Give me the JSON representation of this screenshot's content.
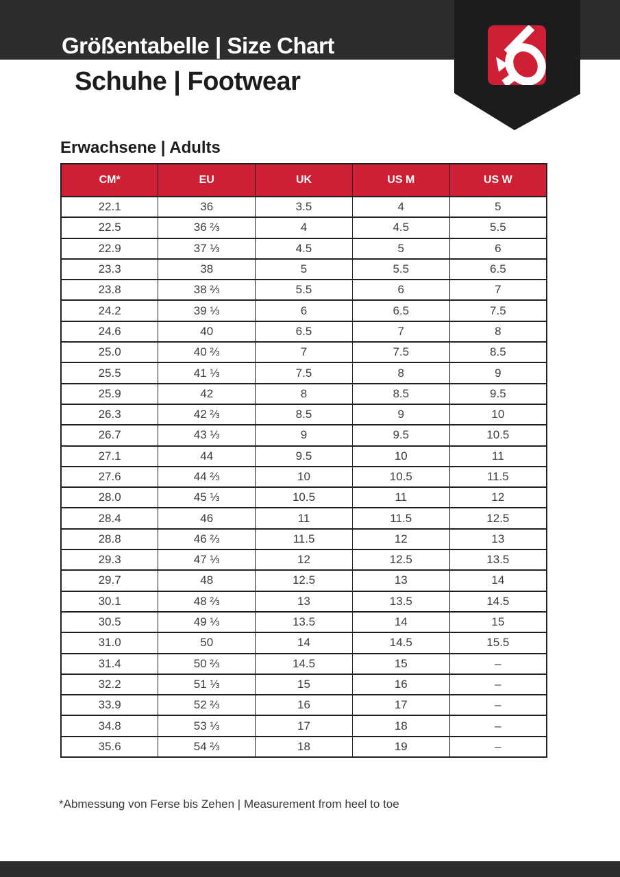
{
  "document": {
    "title": "Größentabelle | Size Chart",
    "subtitle": "Schuhe | Footwear",
    "section_heading": "Erwachsene | Adults",
    "footnote": "*Abmessung von Ferse bis Zehen | Measurement from heel to toe"
  },
  "brand": {
    "logo": "five-ten-logo",
    "colors": {
      "red": "#ce1f34",
      "charcoal": "#2d2d2d",
      "pennant": "#1c1c1e"
    }
  },
  "chart_data": {
    "type": "table",
    "title": "Erwachsene | Adults",
    "columns": [
      "CM*",
      "EU",
      "UK",
      "US M",
      "US W"
    ],
    "rows": [
      [
        "22.1",
        "36",
        "3.5",
        "4",
        "5"
      ],
      [
        "22.5",
        "36 ⅔",
        "4",
        "4.5",
        "5.5"
      ],
      [
        "22.9",
        "37 ⅓",
        "4.5",
        "5",
        "6"
      ],
      [
        "23.3",
        "38",
        "5",
        "5.5",
        "6.5"
      ],
      [
        "23.8",
        "38 ⅔",
        "5.5",
        "6",
        "7"
      ],
      [
        "24.2",
        "39 ⅓",
        "6",
        "6.5",
        "7.5"
      ],
      [
        "24.6",
        "40",
        "6.5",
        "7",
        "8"
      ],
      [
        "25.0",
        "40 ⅔",
        "7",
        "7.5",
        "8.5"
      ],
      [
        "25.5",
        "41 ⅓",
        "7.5",
        "8",
        "9"
      ],
      [
        "25.9",
        "42",
        "8",
        "8.5",
        "9.5"
      ],
      [
        "26.3",
        "42 ⅔",
        "8.5",
        "9",
        "10"
      ],
      [
        "26.7",
        "43 ⅓",
        "9",
        "9.5",
        "10.5"
      ],
      [
        "27.1",
        "44",
        "9.5",
        "10",
        "11"
      ],
      [
        "27.6",
        "44 ⅔",
        "10",
        "10.5",
        "11.5"
      ],
      [
        "28.0",
        "45 ⅓",
        "10.5",
        "11",
        "12"
      ],
      [
        "28.4",
        "46",
        "11",
        "11.5",
        "12.5"
      ],
      [
        "28.8",
        "46 ⅔",
        "11.5",
        "12",
        "13"
      ],
      [
        "29.3",
        "47 ⅓",
        "12",
        "12.5",
        "13.5"
      ],
      [
        "29.7",
        "48",
        "12.5",
        "13",
        "14"
      ],
      [
        "30.1",
        "48 ⅔",
        "13",
        "13.5",
        "14.5"
      ],
      [
        "30.5",
        "49 ⅓",
        "13.5",
        "14",
        "15"
      ],
      [
        "31.0",
        "50",
        "14",
        "14.5",
        "15.5"
      ],
      [
        "31.4",
        "50 ⅔",
        "14.5",
        "15",
        "–"
      ],
      [
        "32.2",
        "51 ⅓",
        "15",
        "16",
        "–"
      ],
      [
        "33.9",
        "52 ⅔",
        "16",
        "17",
        "–"
      ],
      [
        "34.8",
        "53 ⅓",
        "17",
        "18",
        "–"
      ],
      [
        "35.6",
        "54 ⅔",
        "18",
        "19",
        "–"
      ]
    ]
  }
}
